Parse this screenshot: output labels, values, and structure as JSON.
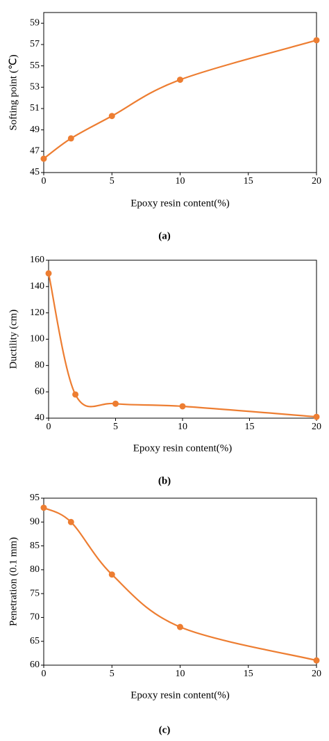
{
  "chart_data": [
    {
      "type": "line",
      "x": [
        0,
        2,
        5,
        10,
        20
      ],
      "values": [
        46.3,
        48.2,
        50.3,
        53.7,
        57.4
      ],
      "color": "#ed7d31",
      "xlim": [
        0,
        20
      ],
      "xticks": [
        0,
        5,
        10,
        15,
        20
      ],
      "ylim": [
        45,
        60
      ],
      "yticks": [
        45,
        47,
        49,
        51,
        53,
        55,
        57,
        59
      ],
      "xlabel": "Epoxy resin content(%)",
      "ylabel": "Softing point (℃)",
      "panel_label": "(a)"
    },
    {
      "type": "line",
      "x": [
        0,
        2,
        5,
        10,
        20
      ],
      "values": [
        150,
        58,
        51,
        49,
        41
      ],
      "color": "#ed7d31",
      "xlim": [
        0,
        20
      ],
      "xticks": [
        0,
        5,
        10,
        15,
        20
      ],
      "ylim": [
        40,
        160
      ],
      "yticks": [
        40,
        60,
        80,
        100,
        120,
        140,
        160
      ],
      "xlabel": "Epoxy resin content(%)",
      "ylabel": "Ductility (cm)",
      "panel_label": "(b)"
    },
    {
      "type": "line",
      "x": [
        0,
        2,
        5,
        10,
        20
      ],
      "values": [
        93,
        90,
        79,
        68,
        61
      ],
      "color": "#ed7d31",
      "xlim": [
        0,
        20
      ],
      "xticks": [
        0,
        5,
        10,
        15,
        20
      ],
      "ylim": [
        60,
        95
      ],
      "yticks": [
        60,
        65,
        70,
        75,
        80,
        85,
        90,
        95
      ],
      "xlabel": "Epoxy resin content(%)",
      "ylabel": "Penetration (0.1 mm)",
      "panel_label": "(c)"
    }
  ]
}
